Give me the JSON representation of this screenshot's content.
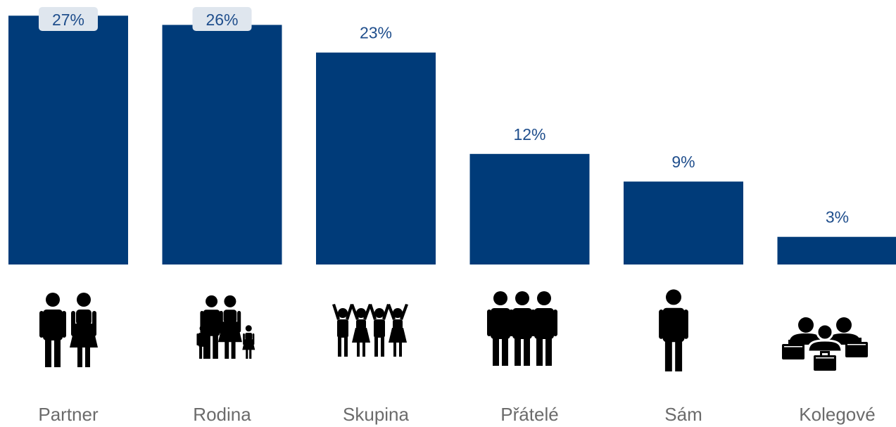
{
  "chart_data": {
    "type": "bar",
    "categories": [
      "Partner",
      "Rodina",
      "Skupina",
      "Přátelé",
      "Sám",
      "Kolegové"
    ],
    "values": [
      27,
      26,
      23,
      12,
      9,
      3
    ],
    "value_labels": [
      "27%",
      "26%",
      "23%",
      "12%",
      "9%",
      "3%"
    ],
    "icons": [
      "couple-icon",
      "family-icon",
      "group-icon",
      "friends-icon",
      "person-icon",
      "colleagues-icon"
    ],
    "bar_color": "#003b79",
    "label_color": "#1f4e8c",
    "category_color": "#6b6b6b",
    "ylim": [
      0,
      28
    ],
    "grid": false,
    "title": "",
    "xlabel": "",
    "ylabel": ""
  }
}
